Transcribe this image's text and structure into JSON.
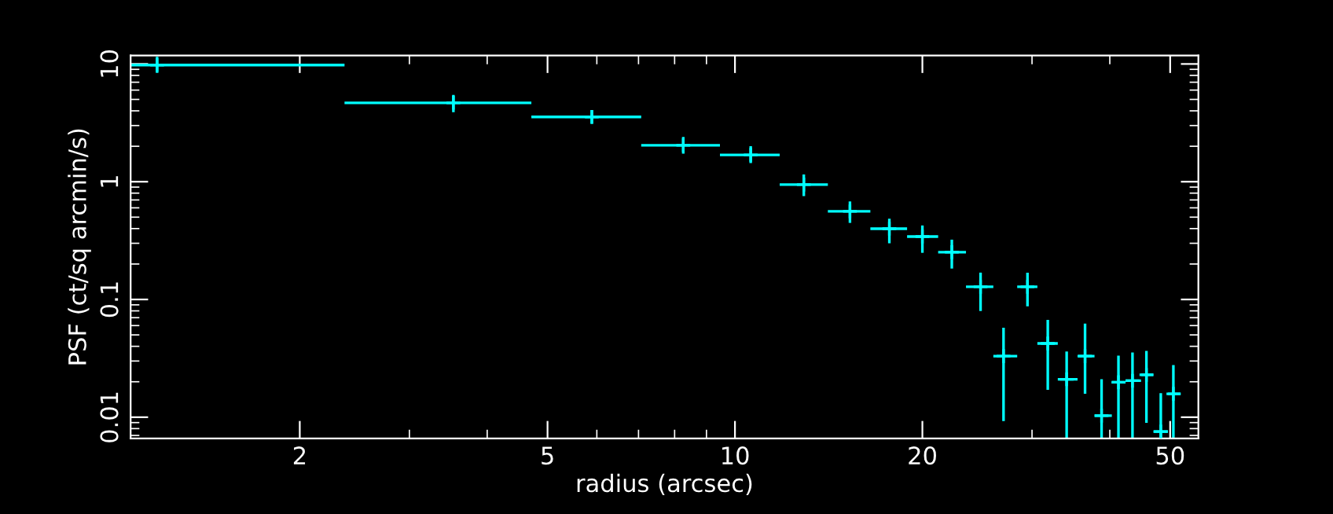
{
  "chart_data": {
    "type": "scatter",
    "xlabel": "radius (arcsec)",
    "ylabel": "PSF (ct/sq arcmin/s)",
    "log": "xy",
    "marker": "cross",
    "grid": false,
    "legend": false,
    "xlim": [
      1.07,
      55.5
    ],
    "ylim": [
      0.0066,
      11.8
    ],
    "xticks": [
      2,
      5,
      10,
      20,
      50
    ],
    "yticks": [
      0.01,
      0.1,
      1,
      10
    ],
    "series": [
      {
        "color": "#00ffff",
        "x": [
          1.18,
          3.53,
          5.89,
          8.26,
          10.6,
          12.9,
          15.3,
          17.7,
          20,
          22.3,
          24.8,
          27.0,
          29.5,
          31.8,
          34.1,
          36.5,
          38.8,
          41.3,
          43.5,
          45.8,
          48.3,
          50.6
        ],
        "values": [
          9.8,
          4.68,
          3.55,
          2.04,
          1.69,
          0.945,
          0.56,
          0.399,
          0.342,
          0.252,
          0.128,
          0.033,
          0.128,
          0.0423,
          0.021,
          0.033,
          0.0103,
          0.0198,
          0.0204,
          0.0229,
          0.00755,
          0.0158
        ],
        "errors": [
          [
            8.4,
            11.5
          ],
          [
            3.89,
            5.46
          ],
          [
            3.1,
            4.06
          ],
          [
            1.73,
            2.4
          ],
          [
            1.44,
            2.0
          ],
          [
            0.754,
            1.15
          ],
          [
            0.447,
            0.68
          ],
          [
            0.3,
            0.485
          ],
          [
            0.249,
            0.425
          ],
          [
            0.183,
            0.322
          ],
          [
            0.0798,
            0.169
          ],
          [
            0.00927,
            0.0575
          ],
          [
            0.0875,
            0.169
          ],
          [
            0.0171,
            0.067
          ],
          [
            0.0066,
            0.0362
          ],
          [
            0.0158,
            0.0624
          ],
          [
            0.0066,
            0.021
          ],
          [
            0.0066,
            0.0333
          ],
          [
            0.0066,
            0.0355
          ],
          [
            0.00897,
            0.0366
          ],
          [
            0.0066,
            0.016
          ],
          [
            0.0066,
            0.0277
          ]
        ],
        "xerrors": [
          [
            1.07,
            2.36
          ],
          [
            2.36,
            4.71
          ],
          [
            4.71,
            7.07
          ],
          [
            7.07,
            9.46
          ],
          [
            9.46,
            11.8
          ],
          [
            11.8,
            14.1
          ],
          [
            14.1,
            16.5
          ],
          [
            16.5,
            18.9
          ],
          [
            18.9,
            21.2
          ],
          [
            21.2,
            23.5
          ],
          [
            23.5,
            26.0
          ],
          [
            26.0,
            28.4
          ],
          [
            28.4,
            30.6
          ],
          [
            30.6,
            33.0
          ],
          [
            33.0,
            35.5
          ],
          [
            35.5,
            37.8
          ],
          [
            37.8,
            40.3
          ],
          [
            40.3,
            42.4
          ],
          [
            42.4,
            44.9
          ],
          [
            44.9,
            47.0
          ],
          [
            47.0,
            49.6
          ],
          [
            49.6,
            52.0
          ]
        ]
      }
    ]
  }
}
